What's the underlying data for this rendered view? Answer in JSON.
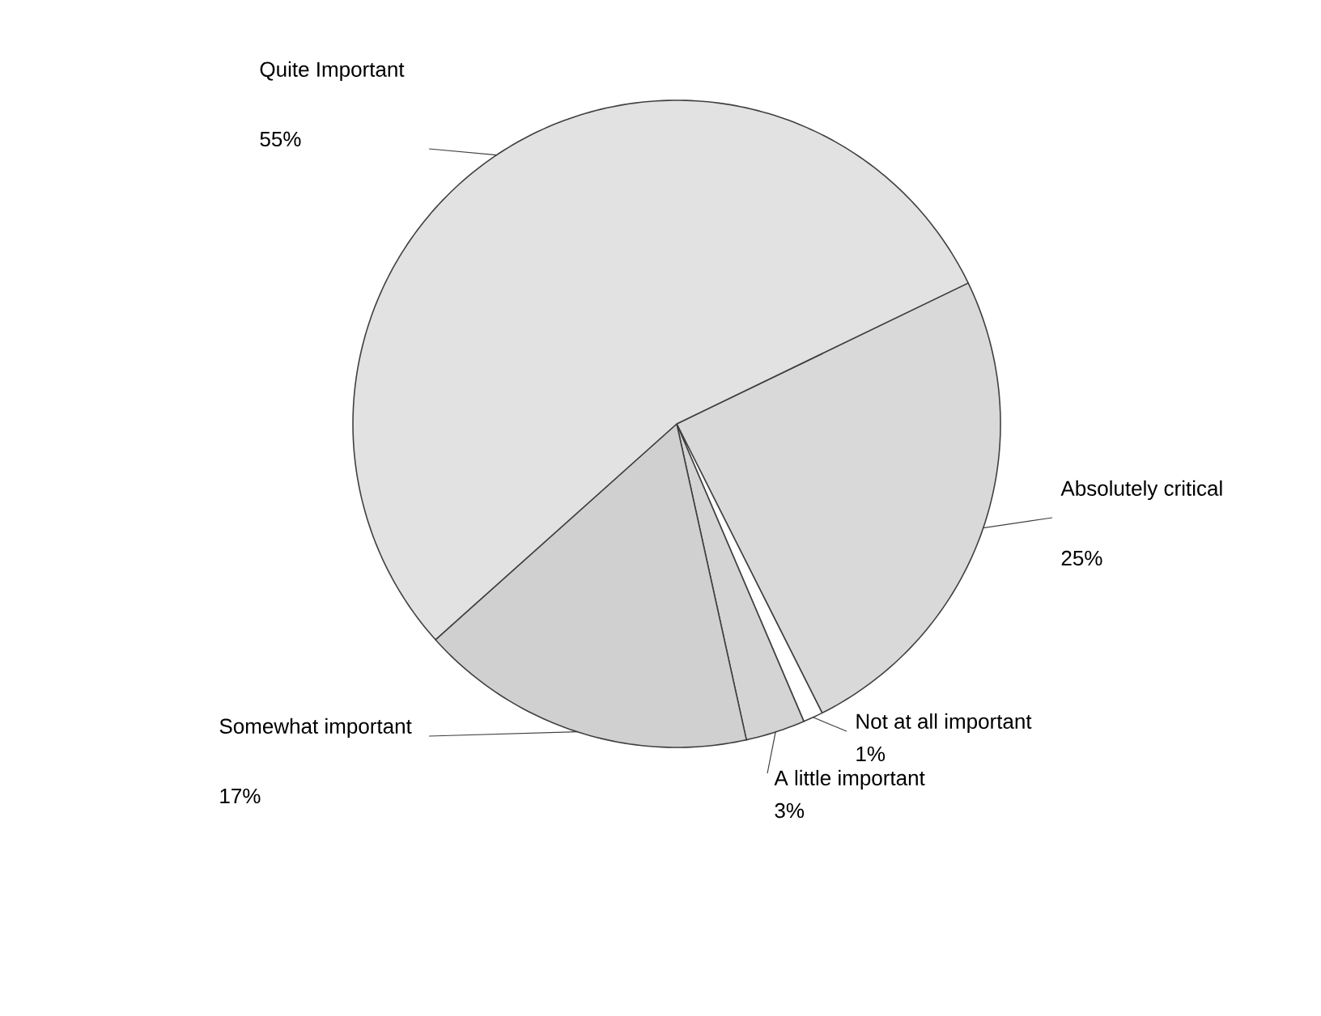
{
  "chart_data": {
    "type": "pie",
    "categories": [
      "Absolutely critical",
      "Not at all important",
      "A little important",
      "Somewhat important",
      "Quite Important"
    ],
    "values": [
      25,
      1,
      3,
      17,
      55
    ],
    "value_labels": [
      "25%",
      "1%",
      "3%",
      "17%",
      "55%"
    ],
    "colors": [
      "#d9d9d9",
      "#ffffff",
      "#d4d4d4",
      "#d0d0d0",
      "#e2e2e2"
    ]
  }
}
